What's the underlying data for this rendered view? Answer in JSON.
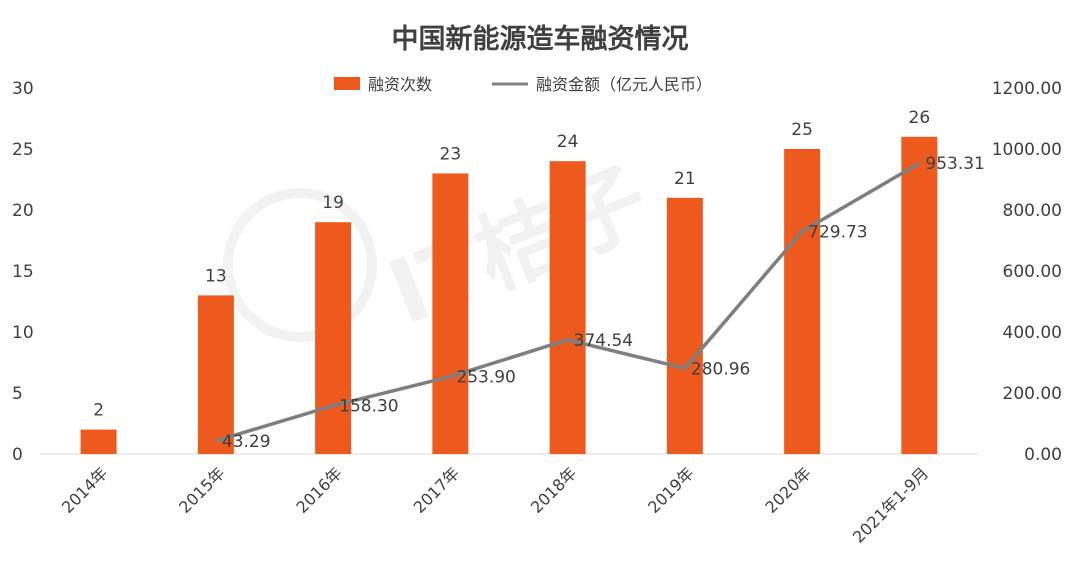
{
  "chart_data": {
    "type": "bar",
    "title": "中国新能源造车融资情况",
    "categories": [
      "2014年",
      "2015年",
      "2016年",
      "2017年",
      "2018年",
      "2019年",
      "2020年",
      "2021年1-9月"
    ],
    "series": [
      {
        "name": "融资次数",
        "type": "bar",
        "axis": "left",
        "color": "#EE5A1E",
        "values": [
          2,
          13,
          19,
          23,
          24,
          21,
          25,
          26
        ],
        "labels": [
          "2",
          "13",
          "19",
          "23",
          "24",
          "21",
          "25",
          "26"
        ]
      },
      {
        "name": "融资金额（亿元人民币）",
        "type": "line",
        "axis": "right",
        "color": "#7F7F7F",
        "values": [
          null,
          43.29,
          158.3,
          253.9,
          374.54,
          280.96,
          729.73,
          953.31
        ],
        "labels": [
          "",
          "43.29",
          "158.30",
          "253.90",
          "374.54",
          "280.96",
          "729.73",
          "953.31"
        ]
      }
    ],
    "y_left": {
      "ylim": [
        0,
        30
      ],
      "ticks": [
        "0",
        "5",
        "10",
        "15",
        "20",
        "25",
        "30"
      ]
    },
    "y_right": {
      "ylim": [
        0,
        1200
      ],
      "ticks": [
        "0.00",
        "200.00",
        "400.00",
        "600.00",
        "800.00",
        "1000.00",
        "1200.00"
      ]
    },
    "legend_position": "top-center",
    "grid": false,
    "watermark": "IT桔子 ITJUZI.COM"
  }
}
